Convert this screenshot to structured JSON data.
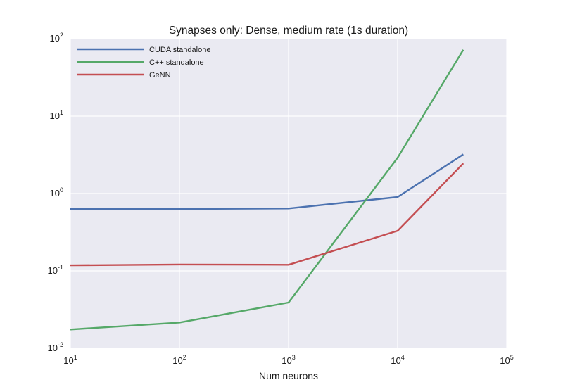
{
  "chart_data": {
    "type": "line",
    "title": "Synapses only: Dense, medium rate (1s duration)",
    "xlabel": "Num neurons",
    "ylabel": "",
    "xscale": "log",
    "yscale": "log",
    "xlim": [
      10,
      100000
    ],
    "ylim": [
      0.01,
      100
    ],
    "x_ticks": [
      {
        "base": "10",
        "exp": "1",
        "value": 10
      },
      {
        "base": "10",
        "exp": "2",
        "value": 100
      },
      {
        "base": "10",
        "exp": "3",
        "value": 1000
      },
      {
        "base": "10",
        "exp": "4",
        "value": 10000
      },
      {
        "base": "10",
        "exp": "5",
        "value": 100000
      }
    ],
    "y_ticks": [
      {
        "base": "10",
        "exp": "-2",
        "value": 0.01
      },
      {
        "base": "10",
        "exp": "-1",
        "value": 0.1
      },
      {
        "base": "10",
        "exp": "0",
        "value": 1
      },
      {
        "base": "10",
        "exp": "1",
        "value": 10
      },
      {
        "base": "10",
        "exp": "2",
        "value": 100
      }
    ],
    "grid": true,
    "legend_position": "top-left",
    "background": "#EAEAF2",
    "series": [
      {
        "name": "CUDA standalone",
        "color": "#4C72B0",
        "x": [
          10,
          100,
          1000,
          10000,
          40000
        ],
        "y": [
          0.63,
          0.63,
          0.64,
          0.9,
          3.2
        ]
      },
      {
        "name": "C++ standalone",
        "color": "#55A868",
        "x": [
          10,
          100,
          1000,
          10000,
          40000
        ],
        "y": [
          0.0175,
          0.0215,
          0.039,
          2.9,
          72
        ]
      },
      {
        "name": "GeNN",
        "color": "#C44E52",
        "x": [
          10,
          100,
          1000,
          10000,
          40000
        ],
        "y": [
          0.118,
          0.121,
          0.12,
          0.33,
          2.45
        ]
      }
    ]
  }
}
